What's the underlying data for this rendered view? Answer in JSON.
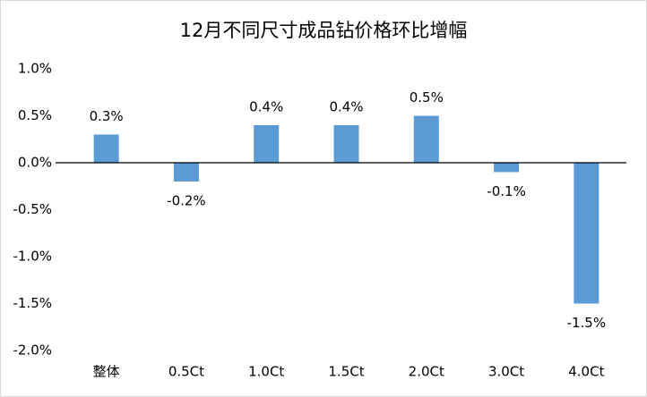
{
  "chart_data": {
    "type": "bar",
    "title": "12月不同尺寸成品钻价格环比增幅",
    "categories": [
      "整体",
      "0.5Ct",
      "1.0Ct",
      "1.5Ct",
      "2.0Ct",
      "3.0Ct",
      "4.0Ct"
    ],
    "values": [
      0.3,
      -0.2,
      0.4,
      0.4,
      0.5,
      -0.1,
      -1.5
    ],
    "value_labels": [
      "0.3%",
      "-0.2%",
      "0.4%",
      "0.4%",
      "0.5%",
      "-0.1%",
      "-1.5%"
    ],
    "color": "#5b9bd5",
    "ylim": [
      -2.0,
      1.0
    ],
    "yticks": [
      {
        "value": -2.0,
        "label": "-2.0%"
      },
      {
        "value": -1.5,
        "label": "-1.5%"
      },
      {
        "value": -1.0,
        "label": "-1.0%"
      },
      {
        "value": -0.5,
        "label": "-0.5%"
      },
      {
        "value": 0,
        "label": "0.0%"
      },
      {
        "value": 0.5,
        "label": "0.5%"
      },
      {
        "value": 1.0,
        "label": "1.0%"
      }
    ],
    "grid": false
  }
}
